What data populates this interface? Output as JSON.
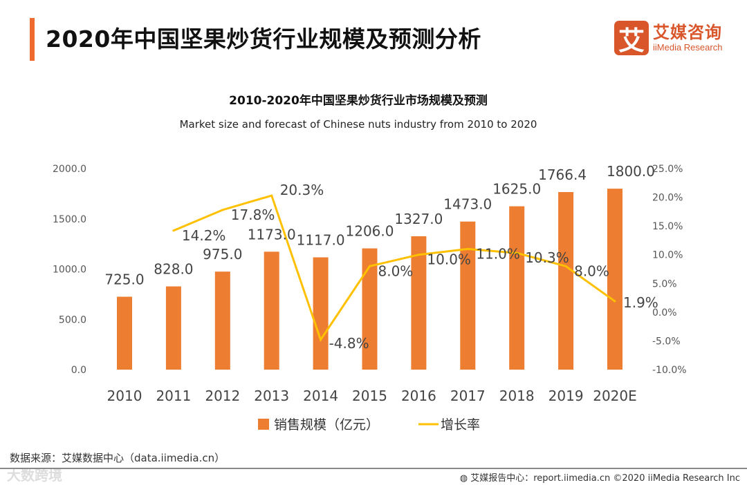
{
  "header": {
    "title": "2020年中国坚果炒货行业规模及预测分析"
  },
  "logo": {
    "glyph": "艾",
    "cn": "艾媒咨询",
    "en": "iiMedia Research"
  },
  "chart_data": {
    "type": "bar+line",
    "title": "2010-2020年中国坚果炒货行业市场规模及预测",
    "subtitle": "Market size and forecast of Chinese nuts industry  from 2010 to 2020",
    "categories": [
      "2010",
      "2011",
      "2012",
      "2013",
      "2014",
      "2015",
      "2016",
      "2017",
      "2018",
      "2019",
      "2020E"
    ],
    "series": [
      {
        "name": "销售规模（亿元）",
        "type": "bar",
        "axis": "left",
        "color": "#ed7d31",
        "values": [
          725.0,
          828.0,
          975.0,
          1173.0,
          1117.0,
          1206.0,
          1327.0,
          1473.0,
          1625.0,
          1766.4,
          1800.0
        ],
        "labels": [
          "725.0",
          "828.0",
          "975.0",
          "1173.0",
          "1117.0",
          "1206.0",
          "1327.0",
          "1473.0",
          "1625.0",
          "1766.4",
          "1800.0"
        ]
      },
      {
        "name": "增长率",
        "type": "line",
        "axis": "right",
        "color": "#ffc000",
        "values": [
          null,
          14.2,
          17.8,
          20.3,
          -4.8,
          8.0,
          10.0,
          11.0,
          10.3,
          8.0,
          1.9
        ],
        "labels": [
          "",
          "14.2%",
          "17.8%",
          "20.3%",
          "-4.8%",
          "8.0%",
          "10.0%",
          "11.0%",
          "10.3%",
          "8.0%",
          "1.9%"
        ]
      }
    ],
    "left_axis": {
      "ylim": [
        0,
        2000
      ],
      "ticks": [
        "0.0",
        "500.0",
        "1000.0",
        "1500.0",
        "2000.0"
      ]
    },
    "right_axis": {
      "ylim": [
        -10,
        25
      ],
      "ticks": [
        "-10.0%",
        "-5.0%",
        "0.0%",
        "5.0%",
        "10.0%",
        "15.0%",
        "20.0%",
        "25.0%"
      ]
    },
    "grid": false,
    "legend": "bottom"
  },
  "footer": {
    "source": "数据来源：艾媒数据中心（data.iimedia.cn）",
    "watermark": "大数跨境",
    "copyright": "艾媒报告中心：report.iimedia.cn  ©2020  iiMedia Research  Inc"
  }
}
